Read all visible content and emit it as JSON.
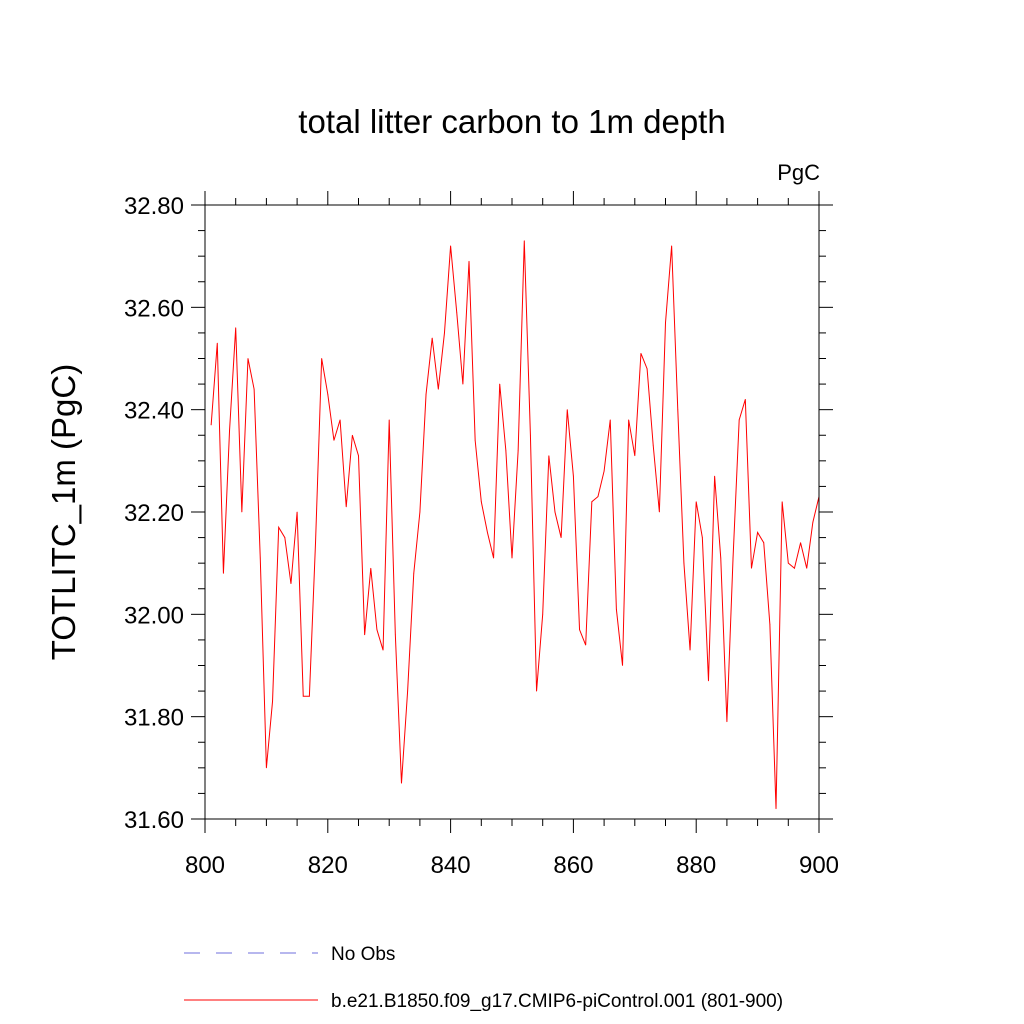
{
  "chart_data": {
    "type": "line",
    "title": "total litter carbon to 1m depth",
    "units_label": "PgC",
    "xlabel": "",
    "ylabel": "TOTLITC_1m  (PgC)",
    "xlim": [
      800,
      900
    ],
    "ylim": [
      31.6,
      32.8
    ],
    "x_ticks": [
      800,
      820,
      840,
      860,
      880,
      900
    ],
    "x_tick_labels": [
      "800",
      "820",
      "840",
      "860",
      "880",
      "900"
    ],
    "y_ticks": [
      31.6,
      31.8,
      32.0,
      32.2,
      32.4,
      32.6,
      32.8
    ],
    "y_tick_labels": [
      "31.60",
      "31.80",
      "32.00",
      "32.20",
      "32.40",
      "32.60",
      "32.80"
    ],
    "grid": false,
    "legend": [
      {
        "label": "No Obs",
        "style": "dashed",
        "color": "#6f6fdc"
      },
      {
        "label": "b.e21.B1850.f09_g17.CMIP6-piControl.001 (801-900)",
        "style": "solid",
        "color": "#ff0000"
      }
    ],
    "series": [
      {
        "name": "b.e21.B1850.f09_g17.CMIP6-piControl.001 (801-900)",
        "color": "#ff0000",
        "x": [
          801,
          802,
          803,
          804,
          805,
          806,
          807,
          808,
          809,
          810,
          811,
          812,
          813,
          814,
          815,
          816,
          817,
          818,
          819,
          820,
          821,
          822,
          823,
          824,
          825,
          826,
          827,
          828,
          829,
          830,
          831,
          832,
          833,
          834,
          835,
          836,
          837,
          838,
          839,
          840,
          841,
          842,
          843,
          844,
          845,
          846,
          847,
          848,
          849,
          850,
          851,
          852,
          853,
          854,
          855,
          856,
          857,
          858,
          859,
          860,
          861,
          862,
          863,
          864,
          865,
          866,
          867,
          868,
          869,
          870,
          871,
          872,
          873,
          874,
          875,
          876,
          877,
          878,
          879,
          880,
          881,
          882,
          883,
          884,
          885,
          886,
          887,
          888,
          889,
          890,
          891,
          892,
          893,
          894,
          895,
          896,
          897,
          898,
          899,
          900
        ],
        "values": [
          32.37,
          32.53,
          32.08,
          32.36,
          32.56,
          32.2,
          32.5,
          32.44,
          32.11,
          31.7,
          31.83,
          32.17,
          32.15,
          32.06,
          32.2,
          31.84,
          31.84,
          32.14,
          32.5,
          32.43,
          32.34,
          32.38,
          32.21,
          32.35,
          32.31,
          31.96,
          32.09,
          31.97,
          31.93,
          32.38,
          31.96,
          31.67,
          31.85,
          32.08,
          32.2,
          32.43,
          32.54,
          32.44,
          32.55,
          32.72,
          32.59,
          32.45,
          32.69,
          32.34,
          32.22,
          32.16,
          32.11,
          32.45,
          32.32,
          32.11,
          32.32,
          32.73,
          32.35,
          31.85,
          32.0,
          32.31,
          32.2,
          32.15,
          32.4,
          32.27,
          31.97,
          31.94,
          32.22,
          32.23,
          32.28,
          32.38,
          32.01,
          31.9,
          32.38,
          32.31,
          32.51,
          32.48,
          32.33,
          32.2,
          32.57,
          32.72,
          32.4,
          32.1,
          31.93,
          32.22,
          32.15,
          31.87,
          32.27,
          32.11,
          31.79,
          32.11,
          32.38,
          32.42,
          32.09,
          32.16,
          32.14,
          31.98,
          31.62,
          32.22,
          32.1,
          32.09,
          32.14,
          32.09,
          32.18,
          32.23
        ]
      }
    ]
  }
}
